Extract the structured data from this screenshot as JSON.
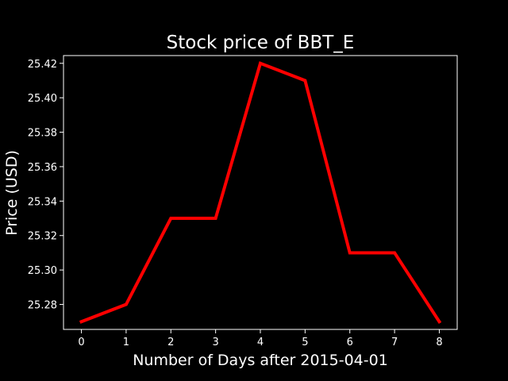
{
  "chart_data": {
    "type": "line",
    "title": "Stock price of BBT_E",
    "xlabel": "Number of Days after 2015-04-01",
    "ylabel": "Price (USD)",
    "x": [
      0,
      1,
      2,
      3,
      4,
      5,
      6,
      7,
      8
    ],
    "series": [
      {
        "values": [
          25.27,
          25.28,
          25.33,
          25.33,
          25.42,
          25.41,
          25.31,
          25.31,
          25.27
        ],
        "color": "#ff0000"
      }
    ],
    "xlim": [
      -0.4,
      8.4
    ],
    "ylim": [
      25.2655,
      25.4245
    ],
    "xticks": [
      0,
      1,
      2,
      3,
      4,
      5,
      6,
      7,
      8
    ],
    "xtick_labels": [
      "0",
      "1",
      "2",
      "3",
      "4",
      "5",
      "6",
      "7",
      "8"
    ],
    "yticks": [
      25.28,
      25.3,
      25.32,
      25.34,
      25.36,
      25.38,
      25.4,
      25.42
    ],
    "ytick_labels": [
      "25.28",
      "25.30",
      "25.32",
      "25.34",
      "25.36",
      "25.38",
      "25.40",
      "25.42"
    ],
    "grid": false,
    "legend": false,
    "background_color": "#000000",
    "axis_color": "#ffffff",
    "text_color": "#ffffff"
  }
}
